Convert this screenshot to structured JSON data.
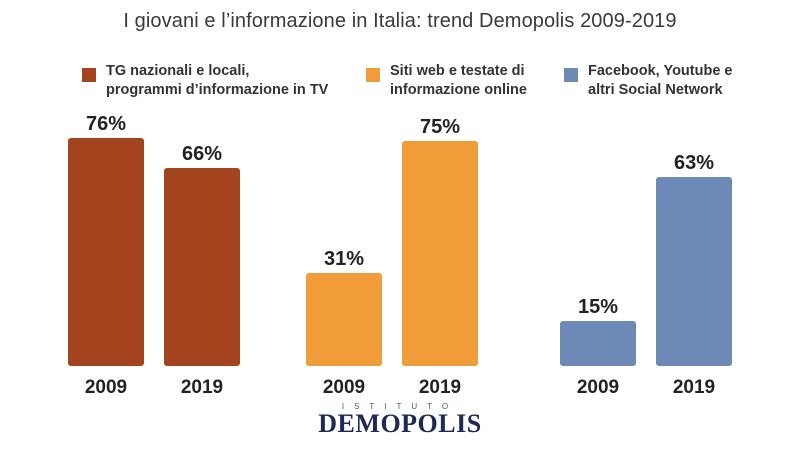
{
  "header": {
    "title": "I giovani e l’informazione in Italia: trend Demopolis 2009-2019"
  },
  "colors": {
    "tv": "#a4441f",
    "web": "#f09c38",
    "social": "#6c8ab5"
  },
  "chart_data": {
    "type": "bar",
    "title": "I giovani e l’informazione in Italia: trend Demopolis 2009-2019",
    "xlabel": "",
    "ylabel": "",
    "ylim": [
      0,
      100
    ],
    "grid": false,
    "legend_position": "top",
    "categories": [
      "2009",
      "2019"
    ],
    "series": [
      {
        "name": "TG nazionali e locali,\nprogrammi d’informazione in TV",
        "values": [
          76,
          66
        ],
        "labels": [
          "76%",
          "66%"
        ],
        "color": "#a4441f"
      },
      {
        "name": "Siti web e testate di\ninformazione online",
        "values": [
          31,
          75
        ],
        "labels": [
          "31%",
          "75%"
        ],
        "color": "#f09c38"
      },
      {
        "name": "Facebook, Youtube e\naltri Social Network",
        "values": [
          15,
          63
        ],
        "labels": [
          "15%",
          "63%"
        ],
        "color": "#6c8ab5"
      }
    ]
  },
  "logo": {
    "top_text": "ISTITUTO",
    "main_text": "DEMOPOLIS"
  }
}
